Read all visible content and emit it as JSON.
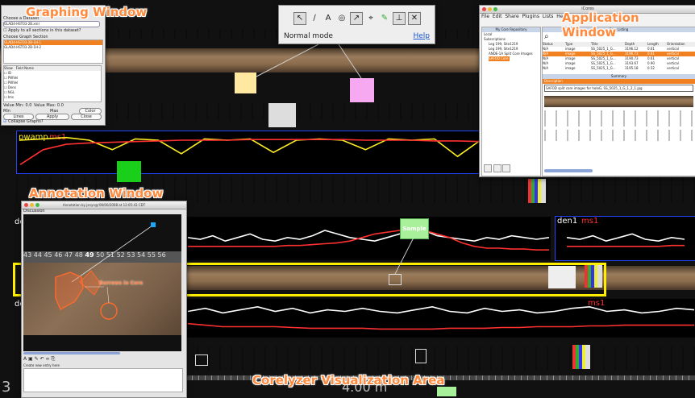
{
  "overlays": {
    "graphing_window": "Graphing Window",
    "application_window": "Application Window",
    "annotation_window": "Annotation Window",
    "visualization_area": "Corelyzer Visualization Area"
  },
  "toolbar": {
    "mode": "Normal mode",
    "help": "Help",
    "tools": [
      "arrow-tool",
      "line-tool",
      "text-tool",
      "zoom-tool",
      "select-tool",
      "crosshair-tool",
      "marker-tool",
      "split-tool",
      "close-tool"
    ]
  },
  "graphing_window": {
    "choose_dataset_label": "Choose a Dataset",
    "dataset": "GLAD4-HST03-2B.xml",
    "apply_all": "Apply to all sections in this dataset?",
    "choose_graph_label": "Choose Graph Section",
    "sections": [
      "GLAD4-HST03-2B-1H-1",
      "GLAD4-HST03-2B-1H-2"
    ],
    "columns": [
      "Show",
      "Field Name"
    ],
    "fields": [
      "ID",
      "PWVel",
      "PWVel",
      "Dens",
      "NGL",
      "Ims",
      "RF"
    ],
    "value_min_label": "Value Min: 0.0",
    "value_max_label": "Value Max: 0.0",
    "min_label": "Min",
    "max_label": "Max",
    "color_btn": "Color",
    "lines": "Lines",
    "apply_btn": "Apply",
    "close_btn": "Close",
    "collapse": "Collapse Graphs?"
  },
  "app_window": {
    "menu": [
      "File",
      "Edit",
      "Share",
      "Plugins",
      "Lists",
      "Help"
    ],
    "title": "iCores",
    "repo_title": "My Core Repository",
    "tree": [
      "Local",
      "Subscriptions",
      "Leg 199, Site1219",
      "Leg 199, Site1219",
      "ANDE-1A Split Core Images",
      "SAFOD Core"
    ],
    "listing_title": "Core Listing",
    "columns": [
      "Status",
      "Type",
      "Title",
      "Depth",
      "Length",
      "Orientation"
    ],
    "rows": [
      [
        "N/A",
        "image",
        "SS_5025_1_G...",
        "3196.12",
        "0.61",
        "vertical"
      ],
      [
        "N/A",
        "image",
        "SS_5025_1_G...",
        "3196.73",
        "0.61",
        "vertical"
      ],
      [
        "N/A",
        "image",
        "SS_5025_1_G...",
        "3190.73",
        "0.61",
        "vertical"
      ],
      [
        "N/A",
        "image",
        "SS_5025_1_G...",
        "3193.67",
        "0.90",
        "vertical"
      ],
      [
        "N/A",
        "image",
        "SS_5025_1_G...",
        "3195.18",
        "0.52",
        "vertical"
      ]
    ],
    "summary_title": "Summary",
    "description_label": "Description",
    "description": "SAFOD split core images for holeG, SS_5025_1_G_1_2_1.jpg"
  },
  "annotation_window": {
    "title": "Annotation by jsnyn@'06/00/2008 at 12:05:43 CDT",
    "tab": "Discussion",
    "ruler_numbers": [
      "43",
      "44",
      "45",
      "46",
      "47",
      "48",
      "49",
      "50",
      "51",
      "52",
      "53",
      "54",
      "55",
      "56"
    ],
    "markup_label": "Burrows in Core",
    "footer": "Create new entry here"
  },
  "graphs": {
    "top": {
      "label_a": "pwamp",
      "label_b": "ms1"
    },
    "mid": {
      "label_a": "den1",
      "label_b": "ms1"
    },
    "mid_right": {
      "label_a": "den1",
      "label_b": "ms1"
    },
    "low_right": {
      "label_b": "ms1"
    }
  },
  "notes": {
    "sample": "Sample"
  },
  "depth_readout": "4.00 m",
  "colors": {
    "overlay_text": "#ff8a3d",
    "graph_border": "#2244ff",
    "highlight": "#ffee00",
    "series_a": "#ffffff",
    "series_b": "#ff3030",
    "series_yellow": "#ffee22"
  },
  "chart_data": [
    {
      "type": "line",
      "series": [
        {
          "name": "pwamp",
          "values": [
            44,
            46,
            48,
            44,
            30,
            46,
            44,
            24,
            46,
            44,
            46,
            26,
            44,
            46,
            44,
            30,
            46,
            44,
            46,
            20,
            44,
            46,
            44,
            38,
            46,
            44,
            46,
            30,
            44,
            46
          ]
        },
        {
          "name": "ms1",
          "values": [
            8,
            30,
            38,
            40,
            41,
            42,
            43,
            44,
            44,
            44,
            45,
            45,
            45,
            45,
            45,
            44,
            44,
            44,
            43,
            43,
            42,
            42,
            42,
            41,
            41,
            40,
            40,
            40,
            39,
            38
          ]
        }
      ]
    },
    {
      "type": "line",
      "series": [
        {
          "name": "den1",
          "values": [
            22,
            20,
            24,
            18,
            22,
            26,
            20,
            18,
            22,
            20,
            24,
            30,
            26,
            22,
            20,
            18,
            22,
            26,
            34,
            30,
            24,
            22,
            20,
            18,
            22,
            20,
            24,
            22,
            20,
            22
          ]
        },
        {
          "name": "ms1",
          "values": [
            12,
            12,
            12,
            12,
            12,
            12,
            12,
            12,
            13,
            13,
            14,
            15,
            16,
            18,
            22,
            26,
            28,
            30,
            32,
            30,
            26,
            22,
            16,
            12,
            10,
            10,
            9,
            9,
            8,
            8
          ]
        }
      ]
    },
    {
      "type": "line",
      "series": [
        {
          "name": "den1",
          "values": [
            30,
            34,
            28,
            32,
            36,
            30,
            34,
            28,
            32,
            30,
            34,
            30,
            28,
            32,
            36,
            30,
            28,
            34,
            30,
            32,
            28,
            30,
            34,
            36,
            30,
            32,
            28,
            30,
            34,
            32
          ]
        },
        {
          "name": "ms1",
          "values": [
            14,
            12,
            10,
            10,
            10,
            10,
            9,
            8,
            8,
            8,
            8,
            7,
            7,
            7,
            7,
            8,
            8,
            8,
            9,
            9,
            10,
            10,
            10,
            11,
            11,
            12,
            12,
            12,
            12,
            12
          ]
        }
      ]
    }
  ]
}
